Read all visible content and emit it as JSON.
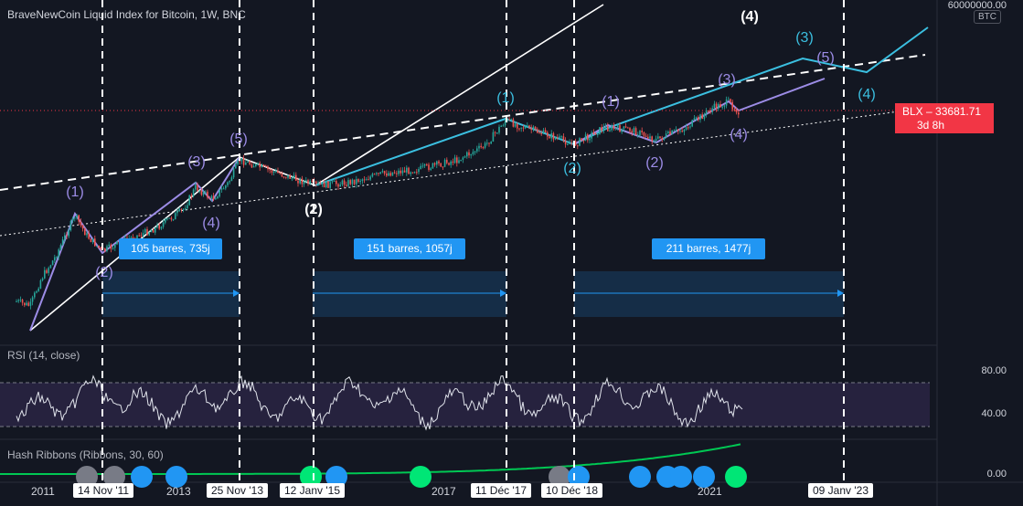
{
  "chart": {
    "title": "BraveNewCoin Liquid Index for Bitcoin, 1W, BNC",
    "symbol_badge": "BTC",
    "top_axis_label": "60000000.00",
    "price_tag": {
      "symbol": "BLX",
      "price": "33681.71",
      "countdown": "3d 8h"
    },
    "rsi_label": "RSI (14, close)",
    "rsi_axis": [
      "80.00",
      "40.00"
    ],
    "hash_label": "Hash Ribbons (Ribbons, 30, 60)",
    "hash_axis": "0.00",
    "colors": {
      "background": "#131722",
      "up": "#26a69a",
      "down": "#ef5350",
      "accent": "#2196f3",
      "wave_purple": "#9c8ce6",
      "wave_cyan": "#3bbfe0",
      "price_tag": "#f23645"
    }
  },
  "ranges": [
    {
      "label": "105 barres, 735j"
    },
    {
      "label": "151 barres, 1057j"
    },
    {
      "label": "211 barres, 1477j"
    }
  ],
  "dates": [
    "2011",
    "14 Nov '11",
    "2013",
    "25 Nov '13",
    "12 Janv '15",
    "2017",
    "11 Déc '17",
    "10 Déc '18",
    "2021",
    "09 Janv '23"
  ],
  "waves": [
    {
      "text": "(1)",
      "color": "purple"
    },
    {
      "text": "(2)",
      "color": "purple"
    },
    {
      "text": "(3)",
      "color": "purple"
    },
    {
      "text": "(4)",
      "color": "purple"
    },
    {
      "text": "(5)",
      "color": "purple"
    },
    {
      "text": "(2)",
      "color": "white"
    },
    {
      "text": "(4)",
      "color": "white"
    },
    {
      "text": "(1)",
      "color": "cyan"
    },
    {
      "text": "(2)",
      "color": "cyan"
    },
    {
      "text": "(1)",
      "color": "purple"
    },
    {
      "text": "(2)",
      "color": "purple"
    },
    {
      "text": "(3)",
      "color": "purple"
    },
    {
      "text": "(4)",
      "color": "purple"
    },
    {
      "text": "(3)",
      "color": "cyan"
    },
    {
      "text": "(5)",
      "color": "purple"
    },
    {
      "text": "(4)",
      "color": "cyan"
    }
  ]
}
